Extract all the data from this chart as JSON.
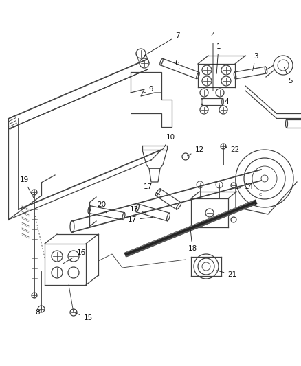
{
  "bg_color": "#ffffff",
  "line_color": "#404040",
  "label_color": "#111111",
  "lw": 0.9,
  "figsize": [
    4.38,
    5.33
  ],
  "dpi": 100,
  "parts": {
    "frame_color": "#505050",
    "spring_color": "#303030"
  }
}
